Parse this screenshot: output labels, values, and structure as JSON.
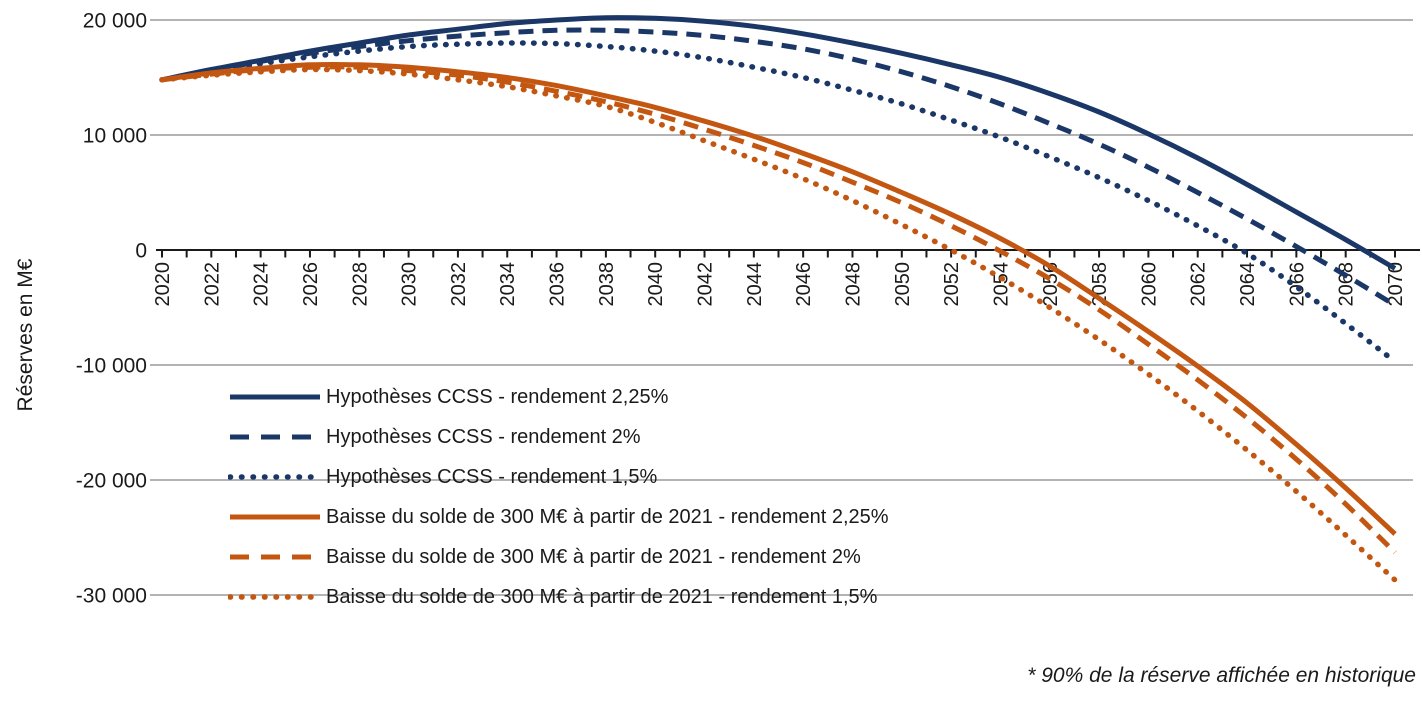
{
  "colors": {
    "ccss_blue": "#1b3767",
    "baisse_orange": "#c35711",
    "gridline_gray": "#b3b3b3",
    "axis_black": "#1a1a1a"
  },
  "chart_data": {
    "type": "line",
    "title": "",
    "xlabel": "",
    "ylabel": "Réserves en M€",
    "footnote": "* 90% de la réserve affichée en historique",
    "xlim": [
      2020,
      2070
    ],
    "ylim": [
      -30000,
      20000
    ],
    "grid": "horizontal",
    "legend_position": "inside bottom-left",
    "x_minor_tick_interval": 1,
    "y_ticks": [
      {
        "value": 20000,
        "label": "20 000"
      },
      {
        "value": 10000,
        "label": "10 000"
      },
      {
        "value": 0,
        "label": "0"
      },
      {
        "value": -10000,
        "label": "-10 000"
      },
      {
        "value": -20000,
        "label": "-20 000"
      },
      {
        "value": -30000,
        "label": "-30 000"
      }
    ],
    "x": [
      2020,
      2022,
      2024,
      2026,
      2028,
      2030,
      2032,
      2034,
      2036,
      2038,
      2040,
      2042,
      2044,
      2046,
      2048,
      2050,
      2052,
      2054,
      2056,
      2058,
      2060,
      2062,
      2064,
      2066,
      2068,
      2070
    ],
    "x_tick_labels": [
      "2020",
      "2022",
      "2024",
      "2026",
      "2028",
      "2030",
      "2032",
      "2034",
      "2036",
      "2038",
      "2040",
      "2042",
      "2044",
      "2046",
      "2048",
      "2050",
      "2052",
      "2054",
      "2056",
      "2058",
      "2060",
      "2062",
      "2064",
      "2066",
      "2068",
      "2070"
    ],
    "series": [
      {
        "name": "Hypothèses CCSS - rendement 2,25%",
        "color": "#1b3767",
        "style": "solid",
        "values": [
          14800,
          15700,
          16500,
          17300,
          18000,
          18700,
          19200,
          19700,
          20000,
          20200,
          20150,
          19900,
          19450,
          18800,
          18000,
          17100,
          16100,
          15000,
          13600,
          12000,
          10100,
          8000,
          5700,
          3300,
          900,
          -1600
        ]
      },
      {
        "name": "Hypothèses CCSS - rendement 2%",
        "color": "#1b3767",
        "style": "dashed",
        "values": [
          14800,
          15600,
          16400,
          17100,
          17700,
          18200,
          18600,
          18900,
          19100,
          19100,
          18950,
          18650,
          18150,
          17500,
          16600,
          15500,
          14200,
          12700,
          11000,
          9200,
          7200,
          5000,
          2700,
          300,
          -2200,
          -4800
        ]
      },
      {
        "name": "Hypothèses CCSS - rendement 1,5%",
        "color": "#1b3767",
        "style": "dotted",
        "values": [
          14800,
          15500,
          16200,
          16800,
          17300,
          17700,
          17900,
          18000,
          17950,
          17700,
          17300,
          16700,
          15900,
          15000,
          13900,
          12700,
          11300,
          9800,
          8100,
          6300,
          4300,
          2100,
          -300,
          -3200,
          -6400,
          -9700
        ]
      },
      {
        "name": "Baisse du solde de 300 M€ à partir de 2021 - rendement 2,25%",
        "color": "#c35711",
        "style": "solid",
        "values": [
          14800,
          15400,
          15800,
          16100,
          16100,
          15900,
          15500,
          15000,
          14300,
          13400,
          12400,
          11200,
          9900,
          8400,
          6800,
          5000,
          3100,
          1000,
          -1400,
          -4200,
          -7100,
          -10100,
          -13300,
          -16900,
          -20700,
          -24700
        ]
      },
      {
        "name": "Baisse du solde de 300 M€ à partir de 2021 - rendement 2%",
        "color": "#c35711",
        "style": "dashed",
        "values": [
          14800,
          15300,
          15700,
          15900,
          15900,
          15600,
          15200,
          14600,
          13800,
          12900,
          11800,
          10500,
          9100,
          7600,
          5900,
          4100,
          2100,
          -100,
          -2500,
          -5200,
          -8200,
          -11300,
          -14600,
          -18200,
          -22100,
          -26300
        ]
      },
      {
        "name": "Baisse du solde de 300 M€ à partir de 2021 - rendement 1,5%",
        "color": "#c35711",
        "style": "dotted",
        "values": [
          14800,
          15200,
          15500,
          15700,
          15600,
          15300,
          14800,
          14200,
          13400,
          12500,
          11100,
          9500,
          7900,
          6200,
          4300,
          2200,
          0,
          -2400,
          -5000,
          -7800,
          -10800,
          -14000,
          -17400,
          -21000,
          -24800,
          -28700
        ]
      }
    ]
  }
}
